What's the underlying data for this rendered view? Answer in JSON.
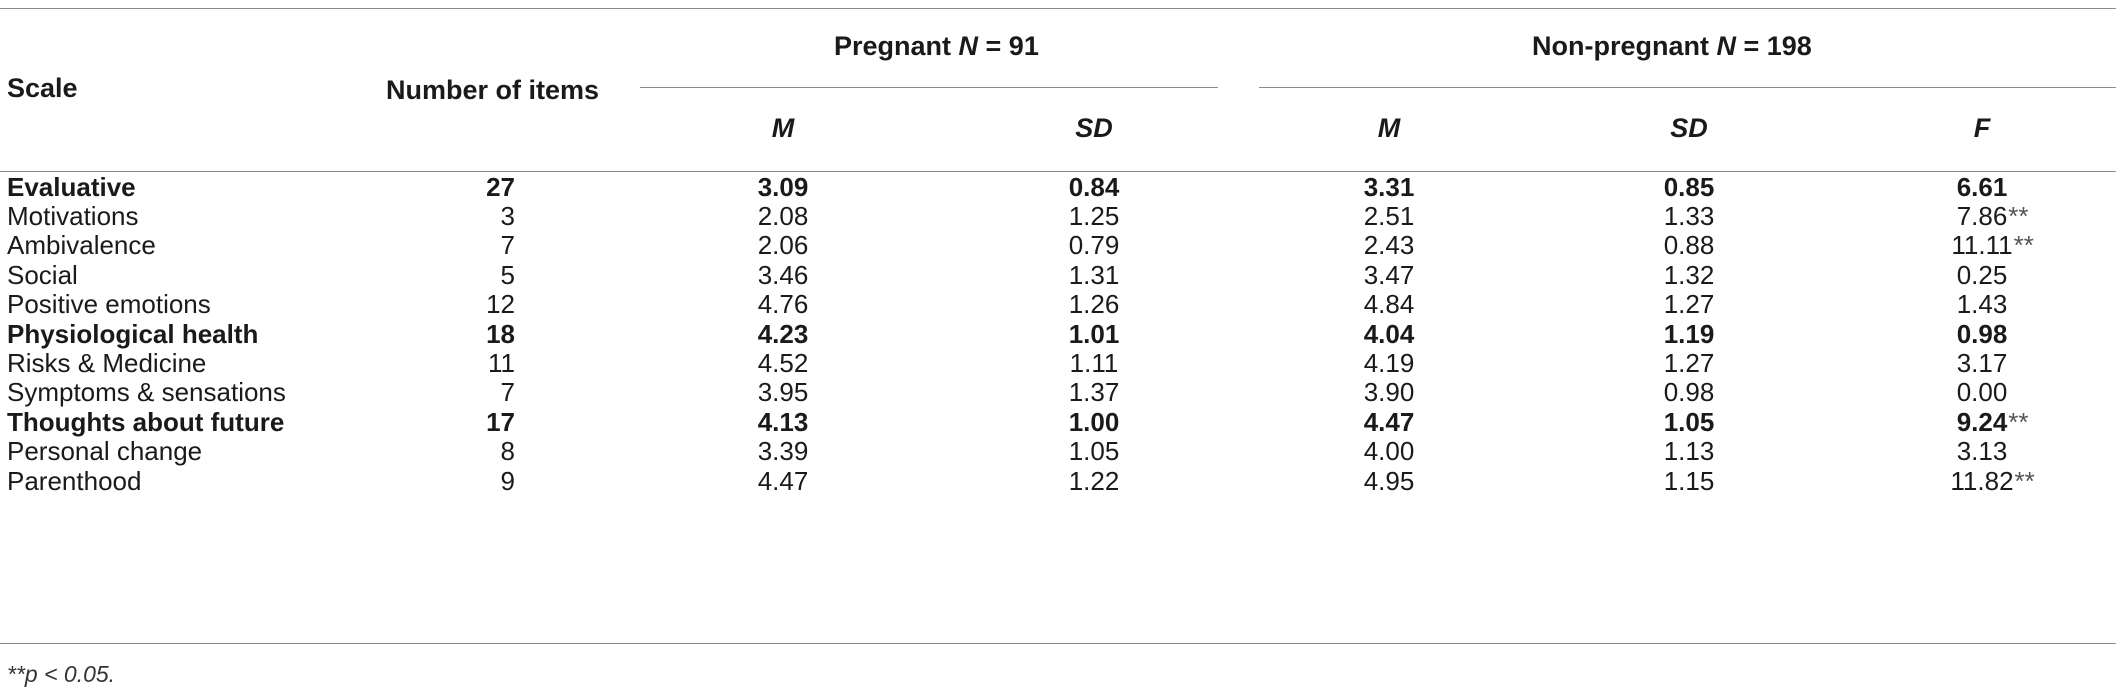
{
  "header": {
    "scale": "Scale",
    "items": "Number of items",
    "pregnant_label": "Pregnant ",
    "pregnant_n_symbol": "N",
    "pregnant_n_value": " = 91",
    "nonpregnant_label": "Non-pregnant ",
    "nonpregnant_n_symbol": "N",
    "nonpregnant_n_value": " = 198",
    "m1": "M",
    "sd1": "SD",
    "m2": "M",
    "sd2": "SD",
    "f": "F"
  },
  "rows": [
    {
      "scale": "Evaluative",
      "items": "27",
      "m1": "3.09",
      "sd1": "0.84",
      "m2": "3.31",
      "sd2": "0.85",
      "f": "6.61",
      "sig": "",
      "bold": true
    },
    {
      "scale": "Motivations",
      "items": "3",
      "m1": "2.08",
      "sd1": "1.25",
      "m2": "2.51",
      "sd2": "1.33",
      "f": "7.86",
      "sig": "**",
      "bold": false
    },
    {
      "scale": "Ambivalence",
      "items": "7",
      "m1": "2.06",
      "sd1": "0.79",
      "m2": "2.43",
      "sd2": "0.88",
      "f": "11.11",
      "sig": "**",
      "bold": false
    },
    {
      "scale": "Social",
      "items": "5",
      "m1": "3.46",
      "sd1": "1.31",
      "m2": "3.47",
      "sd2": "1.32",
      "f": "0.25",
      "sig": "",
      "bold": false
    },
    {
      "scale": "Positive emotions",
      "items": "12",
      "m1": "4.76",
      "sd1": "1.26",
      "m2": "4.84",
      "sd2": "1.27",
      "f": "1.43",
      "sig": "",
      "bold": false
    },
    {
      "scale": "Physiological health",
      "items": "18",
      "m1": "4.23",
      "sd1": "1.01",
      "m2": "4.04",
      "sd2": "1.19",
      "f": "0.98",
      "sig": "",
      "bold": true
    },
    {
      "scale": "Risks & Medicine",
      "items": "11",
      "m1": "4.52",
      "sd1": "1.11",
      "m2": "4.19",
      "sd2": "1.27",
      "f": "3.17",
      "sig": "",
      "bold": false
    },
    {
      "scale": "Symptoms & sensations",
      "items": "7",
      "m1": "3.95",
      "sd1": "1.37",
      "m2": "3.90",
      "sd2": "0.98",
      "f": "0.00",
      "sig": "",
      "bold": false
    },
    {
      "scale": "Thoughts about future",
      "items": "17",
      "m1": "4.13",
      "sd1": "1.00",
      "m2": "4.47",
      "sd2": "1.05",
      "f": "9.24",
      "sig": "**",
      "bold": true
    },
    {
      "scale": "Personal change",
      "items": "8",
      "m1": "3.39",
      "sd1": "1.05",
      "m2": "4.00",
      "sd2": "1.13",
      "f": "3.13",
      "sig": "",
      "bold": false
    },
    {
      "scale": "Parenthood",
      "items": "9",
      "m1": "4.47",
      "sd1": "1.22",
      "m2": "4.95",
      "sd2": "1.15",
      "f": "11.82",
      "sig": "**",
      "bold": false
    }
  ],
  "note": "**p < 0.05."
}
